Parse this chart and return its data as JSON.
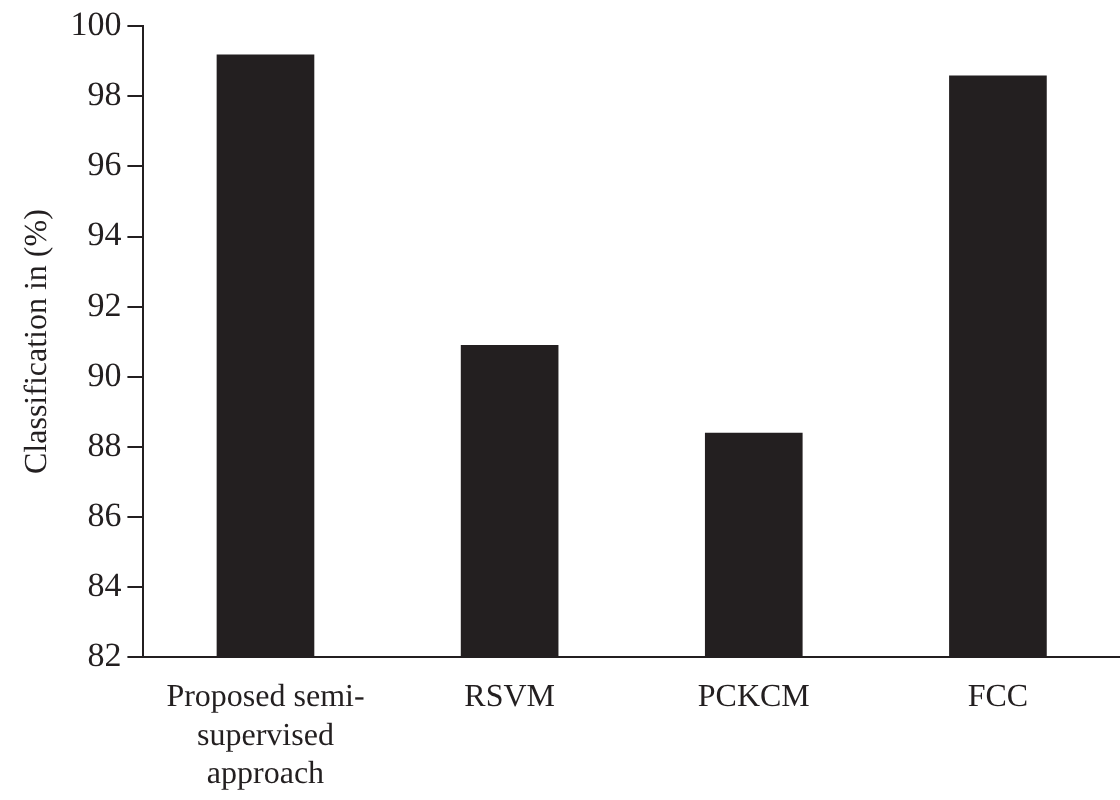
{
  "chart_data": {
    "type": "bar",
    "ylabel": "Classification in (%)",
    "categories": [
      "Proposed semi-supervised approach",
      "RSVM",
      "PCKCM",
      "FCC"
    ],
    "values": [
      99.2,
      90.9,
      88.4,
      98.6
    ],
    "color": "#231f20",
    "ylim": [
      82,
      100
    ],
    "yticks": [
      82,
      84,
      86,
      88,
      90,
      92,
      94,
      96,
      98,
      100
    ],
    "grid": false,
    "legend": false
  }
}
